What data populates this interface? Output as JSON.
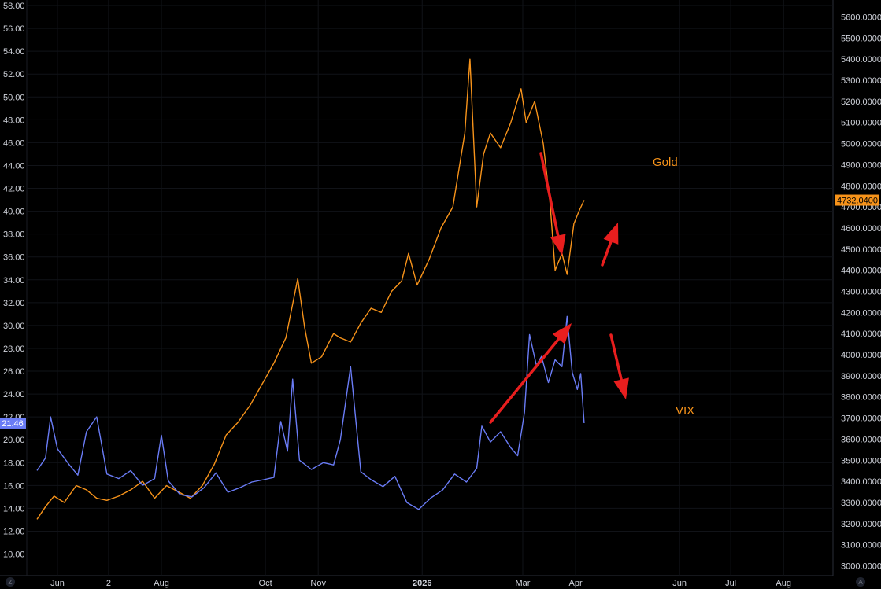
{
  "chart_data": {
    "type": "line",
    "title": "",
    "grid": true,
    "x_ticks": [
      {
        "label": "Jun",
        "date": "2025-06-01"
      },
      {
        "label": "2",
        "date": "2025-07-01"
      },
      {
        "label": "Aug",
        "date": "2025-08-01"
      },
      {
        "label": "Oct",
        "date": "2025-10-01"
      },
      {
        "label": "Nov",
        "date": "2025-11-01"
      },
      {
        "label": "2026",
        "date": "2026-01-01",
        "bold": true
      },
      {
        "label": "Mar",
        "date": "2026-03-01"
      },
      {
        "label": "Apr",
        "date": "2026-04-01"
      },
      {
        "label": "Jun",
        "date": "2026-06-01"
      },
      {
        "label": "Jul",
        "date": "2026-07-01"
      },
      {
        "label": "Aug",
        "date": "2026-08-01"
      }
    ],
    "left_axis": {
      "ylim": [
        9,
        58.5
      ],
      "ticks": [
        "10.00",
        "12.00",
        "14.00",
        "16.00",
        "18.00",
        "20.00",
        "22.00",
        "24.00",
        "26.00",
        "28.00",
        "30.00",
        "32.00",
        "34.00",
        "36.00",
        "38.00",
        "40.00",
        "42.00",
        "44.00",
        "46.00",
        "48.00",
        "50.00",
        "52.00",
        "54.00",
        "56.00",
        "58.00"
      ]
    },
    "right_axis": {
      "ylim": [
        2950,
        5650
      ],
      "ticks": [
        "3000.0000",
        "3100.0000",
        "3200.0000",
        "3300.0000",
        "3400.0000",
        "3500.0000",
        "3600.0000",
        "3700.0000",
        "3800.0000",
        "3900.0000",
        "4000.0000",
        "4100.0000",
        "4200.0000",
        "4300.0000",
        "4400.0000",
        "4500.0000",
        "4600.0000",
        "4700.0000",
        "4800.0000",
        "4900.0000",
        "5000.0000",
        "5100.0000",
        "5200.0000",
        "5300.0000",
        "5400.0000",
        "5500.0000",
        "5600.0000"
      ]
    },
    "series": [
      {
        "name": "Gold",
        "axis": "right",
        "color": "#f7931a",
        "last_value_label": "4732.0400",
        "points": [
          [
            "2025-05-20",
            3220
          ],
          [
            "2025-05-25",
            3280
          ],
          [
            "2025-05-30",
            3330
          ],
          [
            "2025-06-05",
            3300
          ],
          [
            "2025-06-12",
            3380
          ],
          [
            "2025-06-18",
            3360
          ],
          [
            "2025-06-24",
            3320
          ],
          [
            "2025-06-30",
            3310
          ],
          [
            "2025-07-07",
            3330
          ],
          [
            "2025-07-14",
            3360
          ],
          [
            "2025-07-21",
            3400
          ],
          [
            "2025-07-28",
            3320
          ],
          [
            "2025-08-04",
            3380
          ],
          [
            "2025-08-11",
            3350
          ],
          [
            "2025-08-18",
            3320
          ],
          [
            "2025-08-25",
            3380
          ],
          [
            "2025-09-01",
            3480
          ],
          [
            "2025-09-08",
            3620
          ],
          [
            "2025-09-15",
            3680
          ],
          [
            "2025-09-22",
            3760
          ],
          [
            "2025-09-29",
            3860
          ],
          [
            "2025-10-06",
            3960
          ],
          [
            "2025-10-13",
            4080
          ],
          [
            "2025-10-20",
            4360
          ],
          [
            "2025-10-24",
            4130
          ],
          [
            "2025-10-28",
            3960
          ],
          [
            "2025-11-03",
            3990
          ],
          [
            "2025-11-10",
            4100
          ],
          [
            "2025-11-14",
            4080
          ],
          [
            "2025-11-20",
            4060
          ],
          [
            "2025-11-26",
            4150
          ],
          [
            "2025-12-02",
            4220
          ],
          [
            "2025-12-08",
            4200
          ],
          [
            "2025-12-14",
            4300
          ],
          [
            "2025-12-20",
            4350
          ],
          [
            "2025-12-24",
            4480
          ],
          [
            "2025-12-29",
            4330
          ],
          [
            "2026-01-05",
            4450
          ],
          [
            "2026-01-12",
            4600
          ],
          [
            "2026-01-19",
            4700
          ],
          [
            "2026-01-26",
            5050
          ],
          [
            "2026-01-29",
            5400
          ],
          [
            "2026-02-02",
            4700
          ],
          [
            "2026-02-06",
            4950
          ],
          [
            "2026-02-10",
            5050
          ],
          [
            "2026-02-16",
            4980
          ],
          [
            "2026-02-22",
            5100
          ],
          [
            "2026-02-28",
            5260
          ],
          [
            "2026-03-03",
            5100
          ],
          [
            "2026-03-08",
            5200
          ],
          [
            "2026-03-13",
            5000
          ],
          [
            "2026-03-17",
            4720
          ],
          [
            "2026-03-20",
            4400
          ],
          [
            "2026-03-24",
            4480
          ],
          [
            "2026-03-27",
            4380
          ],
          [
            "2026-03-31",
            4620
          ],
          [
            "2026-04-03",
            4680
          ],
          [
            "2026-04-06",
            4732
          ]
        ]
      },
      {
        "name": "VIX",
        "axis": "left",
        "color": "#6a7cf6",
        "last_value_label": "21.46",
        "points": [
          [
            "2025-05-20",
            17.3
          ],
          [
            "2025-05-25",
            18.4
          ],
          [
            "2025-05-28",
            22.0
          ],
          [
            "2025-06-01",
            19.2
          ],
          [
            "2025-06-08",
            17.8
          ],
          [
            "2025-06-13",
            16.9
          ],
          [
            "2025-06-18",
            20.7
          ],
          [
            "2025-06-24",
            22.0
          ],
          [
            "2025-06-30",
            17.0
          ],
          [
            "2025-07-07",
            16.6
          ],
          [
            "2025-07-14",
            17.3
          ],
          [
            "2025-07-21",
            16.0
          ],
          [
            "2025-07-28",
            16.6
          ],
          [
            "2025-08-01",
            20.4
          ],
          [
            "2025-08-05",
            16.4
          ],
          [
            "2025-08-12",
            15.2
          ],
          [
            "2025-08-19",
            15.0
          ],
          [
            "2025-08-26",
            15.8
          ],
          [
            "2025-09-02",
            17.1
          ],
          [
            "2025-09-09",
            15.4
          ],
          [
            "2025-09-16",
            15.8
          ],
          [
            "2025-09-23",
            16.3
          ],
          [
            "2025-09-30",
            16.5
          ],
          [
            "2025-10-06",
            16.7
          ],
          [
            "2025-10-10",
            21.6
          ],
          [
            "2025-10-14",
            19.0
          ],
          [
            "2025-10-17",
            25.3
          ],
          [
            "2025-10-21",
            18.2
          ],
          [
            "2025-10-28",
            17.4
          ],
          [
            "2025-11-04",
            18.0
          ],
          [
            "2025-11-10",
            17.8
          ],
          [
            "2025-11-14",
            20.0
          ],
          [
            "2025-11-20",
            26.4
          ],
          [
            "2025-11-26",
            17.2
          ],
          [
            "2025-12-02",
            16.5
          ],
          [
            "2025-12-09",
            15.9
          ],
          [
            "2025-12-16",
            16.8
          ],
          [
            "2025-12-23",
            14.5
          ],
          [
            "2025-12-30",
            13.9
          ],
          [
            "2026-01-06",
            14.9
          ],
          [
            "2026-01-13",
            15.6
          ],
          [
            "2026-01-20",
            17.0
          ],
          [
            "2026-01-27",
            16.3
          ],
          [
            "2026-02-02",
            17.5
          ],
          [
            "2026-02-05",
            21.2
          ],
          [
            "2026-02-10",
            19.8
          ],
          [
            "2026-02-16",
            20.7
          ],
          [
            "2026-02-22",
            19.3
          ],
          [
            "2026-02-26",
            18.6
          ],
          [
            "2026-03-02",
            22.4
          ],
          [
            "2026-03-05",
            29.2
          ],
          [
            "2026-03-09",
            26.5
          ],
          [
            "2026-03-12",
            27.3
          ],
          [
            "2026-03-16",
            25.0
          ],
          [
            "2026-03-20",
            27.0
          ],
          [
            "2026-03-24",
            26.4
          ],
          [
            "2026-03-27",
            30.8
          ],
          [
            "2026-03-30",
            25.9
          ],
          [
            "2026-04-02",
            24.4
          ],
          [
            "2026-04-04",
            25.8
          ],
          [
            "2026-04-06",
            21.46
          ]
        ]
      }
    ],
    "annotations": [
      {
        "text": "Gold",
        "color": "#f7931a"
      },
      {
        "text": "VIX",
        "color": "#f7931a"
      }
    ],
    "arrow_color": "#e81e1e",
    "corner_labels": {
      "bottom_left": "Z",
      "bottom_right": "A"
    }
  }
}
